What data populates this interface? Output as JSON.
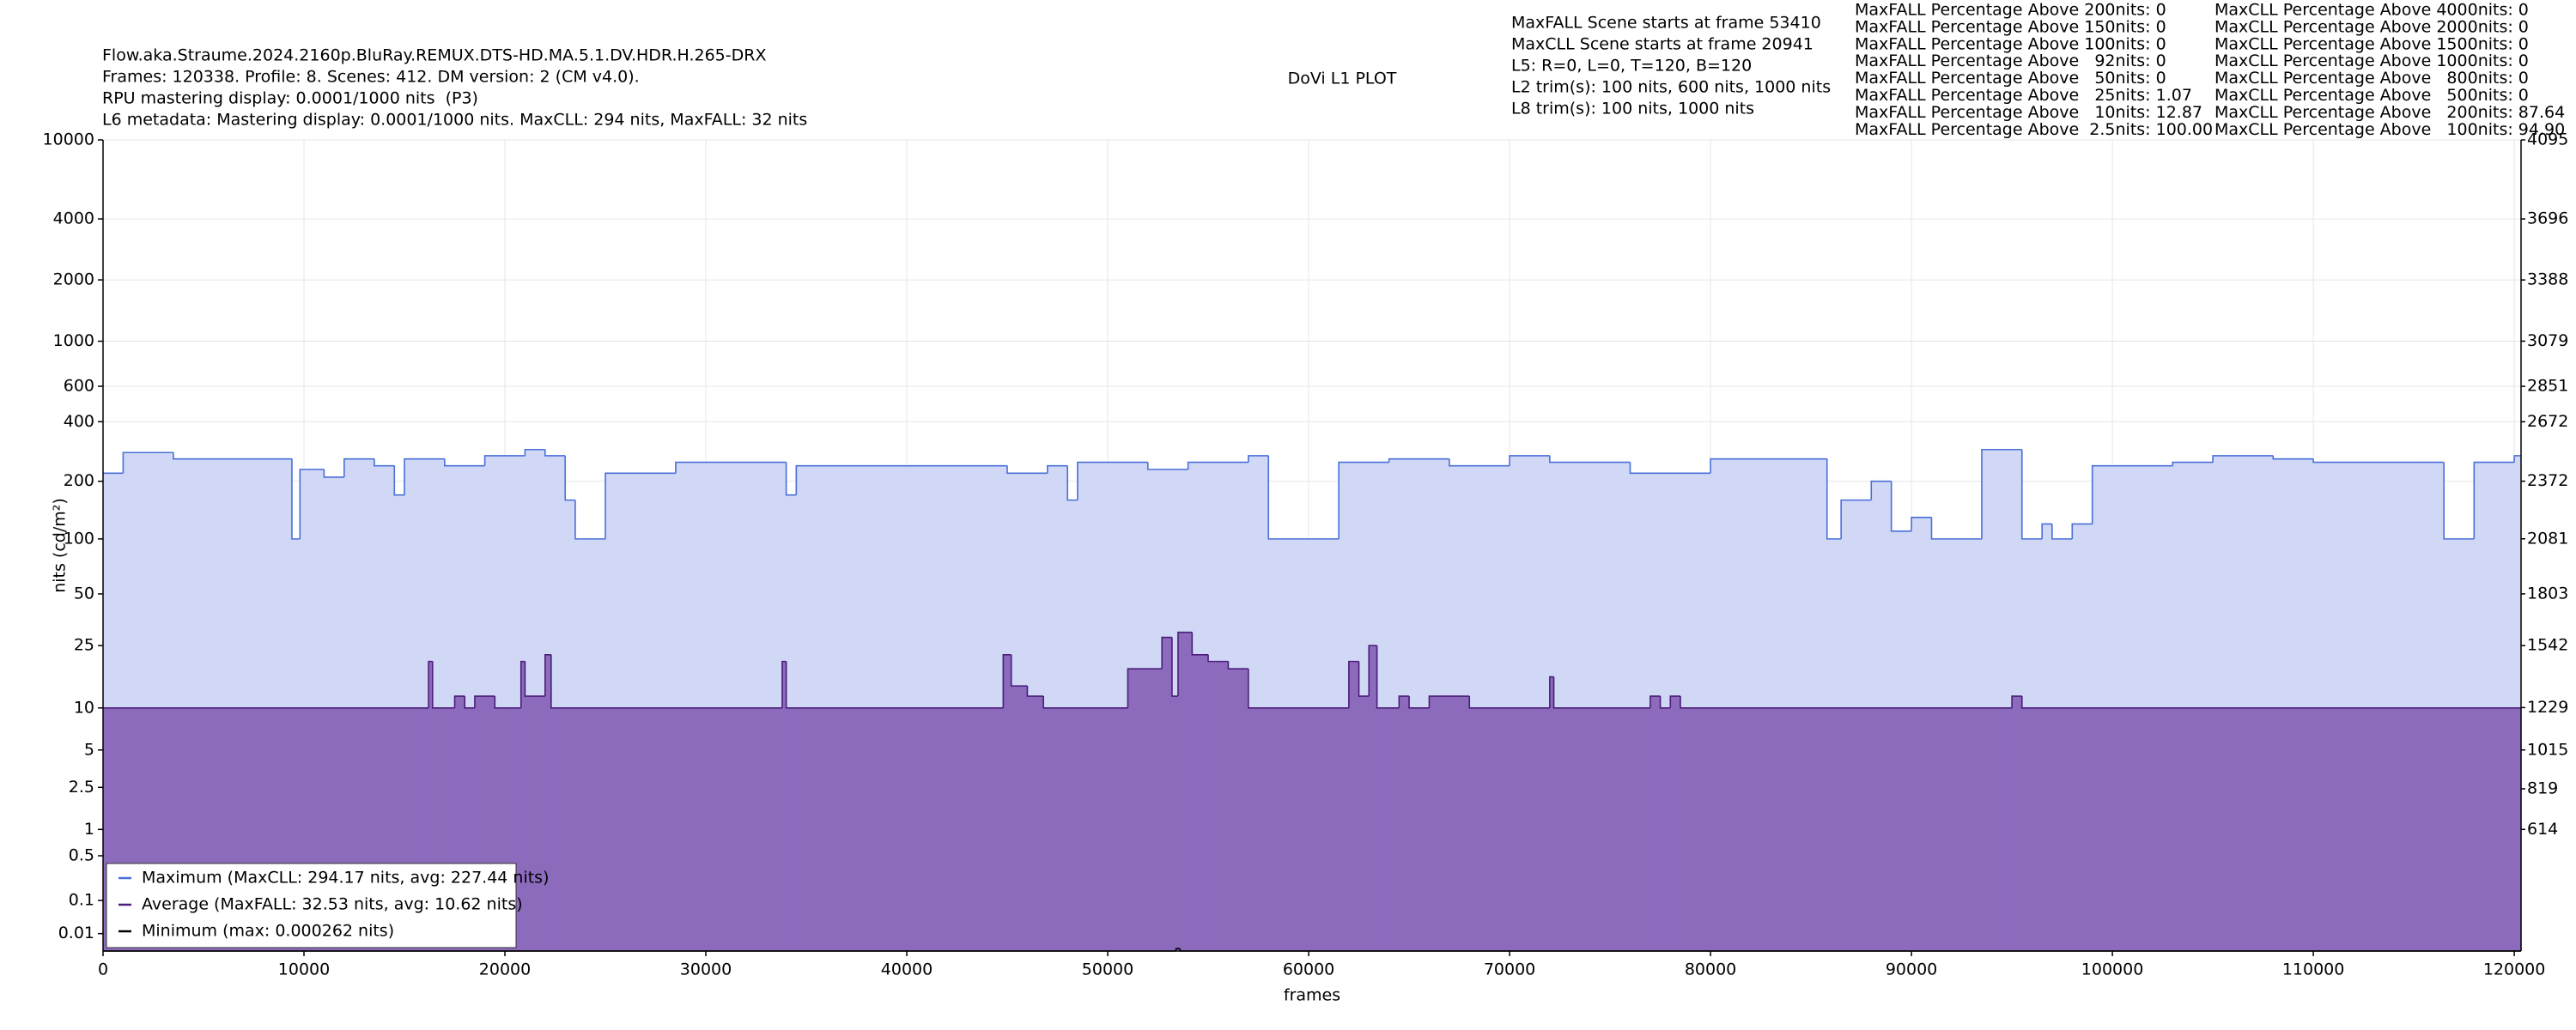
{
  "chart_data": {
    "type": "line",
    "title": "DoVi L1 PLOT",
    "header_lines": [
      "Flow.aka.Straume.2024.2160p.BluRay.REMUX.DTS-HD.MA.5.1.DV.HDR.H.265-DRX",
      "Frames: 120338. Profile: 8. Scenes: 412. DM version: 2 (CM v4.0).",
      "RPU mastering display: 0.0001/1000 nits  (P3)",
      "L6 metadata: Mastering display: 0.0001/1000 nits. MaxCLL: 294 nits, MaxFALL: 32 nits"
    ],
    "info_lines": [
      "MaxFALL Scene starts at frame 53410",
      "MaxCLL Scene starts at frame 20941",
      "L5: R=0, L=0, T=120, B=120",
      "L2 trim(s): 100 nits, 600 nits, 1000 nits",
      "L8 trim(s): 100 nits, 1000 nits"
    ],
    "maxfall_percentages": [
      "MaxFALL Percentage Above 200nits: 0",
      "MaxFALL Percentage Above 150nits: 0",
      "MaxFALL Percentage Above 100nits: 0",
      "MaxFALL Percentage Above   92nits: 0",
      "MaxFALL Percentage Above   50nits: 0",
      "MaxFALL Percentage Above   25nits: 1.07",
      "MaxFALL Percentage Above   10nits: 12.87",
      "MaxFALL Percentage Above  2.5nits: 100.00"
    ],
    "maxcll_percentages": [
      "MaxCLL Percentage Above 4000nits: 0",
      "MaxCLL Percentage Above 2000nits: 0",
      "MaxCLL Percentage Above 1500nits: 0",
      "MaxCLL Percentage Above 1000nits: 0",
      "MaxCLL Percentage Above   800nits: 0",
      "MaxCLL Percentage Above   500nits: 0",
      "MaxCLL Percentage Above   200nits: 87.64",
      "MaxCLL Percentage Above   100nits: 94.90"
    ],
    "xlabel": "frames",
    "ylabel": "nits (cd/m²)",
    "xlim": [
      0,
      120338
    ],
    "xticks": [
      0,
      10000,
      20000,
      30000,
      40000,
      50000,
      60000,
      70000,
      80000,
      90000,
      100000,
      110000,
      120000
    ],
    "ylim": [
      0,
      10000
    ],
    "yscale": "pq",
    "yticks": [
      10000,
      4000,
      2000,
      1000,
      600,
      400,
      200,
      100,
      50,
      25,
      10,
      5,
      2.5,
      1,
      0.5,
      0.1,
      0.01
    ],
    "y2lim": [
      0,
      4095
    ],
    "y2ticks": [
      4095,
      3696,
      3388,
      3079,
      2851,
      2672,
      2372,
      2081,
      1803,
      1542,
      1229,
      1015,
      819,
      614
    ],
    "grid": true,
    "legend": "lower left",
    "drawstyle": "steps-post",
    "series": [
      {
        "name": "Maximum (MaxCLL: 294.17 nits, avg: 227.44 nits)",
        "color": "#4a6fd8",
        "fill": "#d0d8f6",
        "x": [
          0,
          1000,
          3500,
          9400,
          9800,
          11000,
          12000,
          13500,
          14500,
          15000,
          17000,
          19000,
          21000,
          22000,
          23000,
          23500,
          25000,
          28500,
          31000,
          34000,
          34500,
          40000,
          45000,
          47000,
          48000,
          48500,
          52000,
          54000,
          57000,
          58000,
          61500,
          64000,
          67000,
          70000,
          72000,
          76000,
          80000,
          85000,
          85800,
          86500,
          88000,
          89000,
          90000,
          91000,
          93500,
          95500,
          96500,
          97000,
          98000,
          99000,
          103000,
          105000,
          108000,
          110000,
          115000,
          116500,
          118000,
          120000
        ],
        "values": [
          220,
          280,
          260,
          100,
          230,
          210,
          260,
          240,
          170,
          260,
          240,
          270,
          290,
          270,
          160,
          100,
          220,
          250,
          250,
          170,
          240,
          240,
          220,
          240,
          160,
          250,
          230,
          250,
          270,
          100,
          250,
          260,
          240,
          270,
          250,
          220,
          260,
          260,
          100,
          160,
          200,
          110,
          130,
          100,
          290,
          100,
          120,
          100,
          120,
          240,
          250,
          270,
          260,
          250,
          250,
          100,
          250,
          270
        ]
      },
      {
        "name": "Average (MaxFALL: 32.53 nits, avg: 10.62 nits)",
        "color": "#4b1d7a",
        "fill": "#8c6bbd",
        "x": [
          0,
          16200,
          16400,
          17500,
          18000,
          18500,
          19500,
          20800,
          21000,
          22000,
          22300,
          33800,
          34000,
          44800,
          45200,
          46000,
          46800,
          51000,
          52700,
          53200,
          53500,
          54200,
          55000,
          56000,
          57000,
          62000,
          62500,
          63000,
          63400,
          64500,
          65000,
          66000,
          68000,
          72000,
          72200,
          77000,
          77500,
          78000,
          78500,
          95000,
          95500
        ],
        "values": [
          10,
          20,
          10,
          12,
          10,
          12,
          10,
          20,
          12,
          22,
          10,
          20,
          10,
          22,
          14,
          12,
          10,
          18,
          28,
          12,
          30,
          22,
          20,
          18,
          10,
          20,
          12,
          25,
          10,
          12,
          10,
          12,
          10,
          16,
          10,
          12,
          10,
          12,
          10,
          12,
          10
        ]
      },
      {
        "name": "Minimum (max: 0.000262 nits)",
        "color": "#000000",
        "fill": "none",
        "x": [
          0,
          53400,
          53600
        ],
        "values": [
          0,
          0.000262,
          0
        ]
      }
    ]
  }
}
